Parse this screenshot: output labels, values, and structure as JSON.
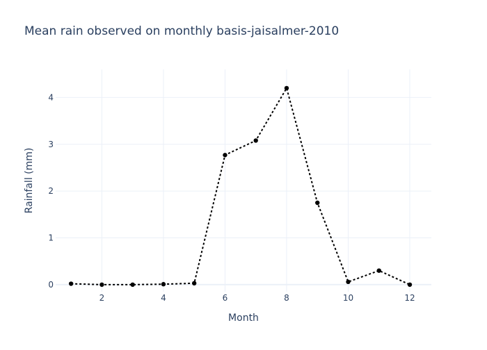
{
  "chart_data": {
    "type": "line",
    "title": "Mean rain observed on monthly basis-jaisalmer-2010",
    "xlabel": "Month",
    "ylabel": "Rainfall (mm)",
    "x": [
      1,
      2,
      3,
      4,
      5,
      6,
      7,
      8,
      9,
      10,
      11,
      12
    ],
    "series": [
      {
        "values": [
          0.02,
          0.0,
          0.0,
          0.01,
          0.03,
          2.77,
          3.08,
          4.2,
          1.75,
          0.06,
          0.3,
          0.0
        ],
        "color": "#000000",
        "line_style": "dotted",
        "marker": "circle"
      }
    ],
    "xlim": [
      0.5,
      12.7
    ],
    "ylim": [
      -0.15,
      4.6
    ],
    "x_ticks": [
      2,
      4,
      6,
      8,
      10,
      12
    ],
    "y_ticks": [
      0,
      1,
      2,
      3,
      4
    ],
    "grid": true,
    "legend": "none"
  }
}
